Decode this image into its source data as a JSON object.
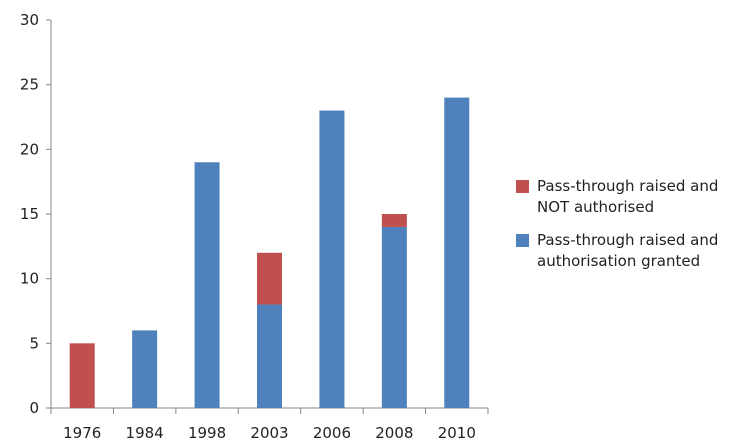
{
  "chart_data": {
    "type": "bar",
    "stacked": true,
    "categories": [
      "1976",
      "1984",
      "1998",
      "2003",
      "2006",
      "2008",
      "2010"
    ],
    "series": [
      {
        "name": "Pass-through raised and\nauthorisation granted",
        "color": "#4F81BD",
        "values": [
          0,
          6,
          19,
          8,
          23,
          14,
          24
        ]
      },
      {
        "name": "Pass-through raised and\nNOT authorised",
        "color": "#C0504D",
        "values": [
          5,
          0,
          0,
          4,
          0,
          1,
          0
        ]
      }
    ],
    "legend_order": [
      1,
      0
    ],
    "ylim": [
      0,
      30
    ],
    "yticks": [
      "0",
      "5",
      "10",
      "15",
      "20",
      "25",
      "30"
    ],
    "grid": false,
    "legend_position": "right"
  }
}
